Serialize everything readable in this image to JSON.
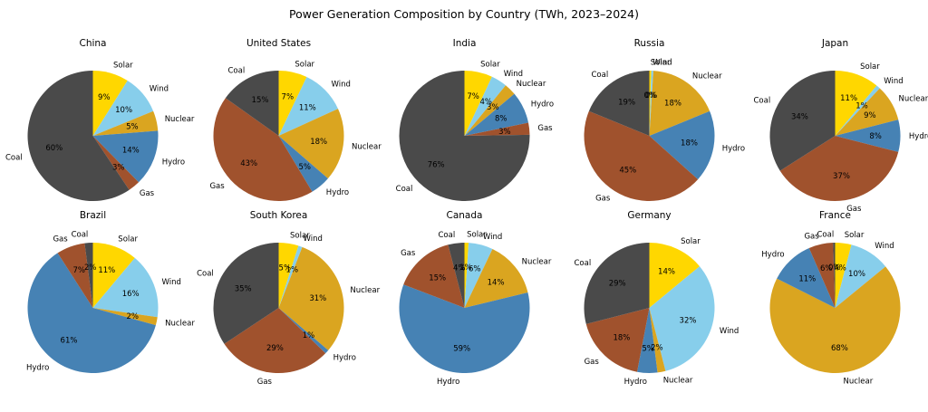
{
  "title": "Power Generation Composition by Country (TWh, 2023–2024)",
  "chart_data": {
    "type": "pie",
    "title": "Power Generation Composition by Country (TWh, 2023–2024)",
    "layout": {
      "rows": 2,
      "cols": 5,
      "legend": "none",
      "start_angle_deg": 90,
      "direction": "clockwise",
      "label_distance": 1.13,
      "pct_distance": 0.62
    },
    "categories": [
      "Solar",
      "Wind",
      "Nuclear",
      "Hydro",
      "Gas",
      "Coal"
    ],
    "colors": {
      "Solar": "#FFD700",
      "Wind": "#87CEEB",
      "Nuclear": "#DAA520",
      "Hydro": "#4682B4",
      "Gas": "#A0522D",
      "Coal": "#4A4A4A"
    },
    "pies": [
      {
        "country": "China",
        "segments": [
          {
            "label": "Solar",
            "pct": 9
          },
          {
            "label": "Wind",
            "pct": 10
          },
          {
            "label": "Nuclear",
            "pct": 5
          },
          {
            "label": "Hydro",
            "pct": 14
          },
          {
            "label": "Gas",
            "pct": 3
          },
          {
            "label": "Coal",
            "pct": 60
          }
        ]
      },
      {
        "country": "United States",
        "segments": [
          {
            "label": "Solar",
            "pct": 7
          },
          {
            "label": "Wind",
            "pct": 11
          },
          {
            "label": "Nuclear",
            "pct": 18
          },
          {
            "label": "Hydro",
            "pct": 5
          },
          {
            "label": "Gas",
            "pct": 43
          },
          {
            "label": "Coal",
            "pct": 15
          }
        ]
      },
      {
        "country": "India",
        "segments": [
          {
            "label": "Solar",
            "pct": 7
          },
          {
            "label": "Wind",
            "pct": 4
          },
          {
            "label": "Nuclear",
            "pct": 3
          },
          {
            "label": "Hydro",
            "pct": 8
          },
          {
            "label": "Gas",
            "pct": 3
          },
          {
            "label": "Coal",
            "pct": 76
          }
        ]
      },
      {
        "country": "Russia",
        "segments": [
          {
            "label": "Solar",
            "pct": 0,
            "draw": 0.5
          },
          {
            "label": "Wind",
            "pct": 0,
            "draw": 0.5
          },
          {
            "label": "Nuclear",
            "pct": 18
          },
          {
            "label": "Hydro",
            "pct": 18
          },
          {
            "label": "Gas",
            "pct": 45
          },
          {
            "label": "Coal",
            "pct": 19
          }
        ]
      },
      {
        "country": "Japan",
        "segments": [
          {
            "label": "Solar",
            "pct": 11
          },
          {
            "label": "Wind",
            "pct": 1
          },
          {
            "label": "Nuclear",
            "pct": 9
          },
          {
            "label": "Hydro",
            "pct": 8
          },
          {
            "label": "Gas",
            "pct": 37
          },
          {
            "label": "Coal",
            "pct": 34
          }
        ]
      },
      {
        "country": "Brazil",
        "segments": [
          {
            "label": "Solar",
            "pct": 11
          },
          {
            "label": "Wind",
            "pct": 16
          },
          {
            "label": "Nuclear",
            "pct": 2
          },
          {
            "label": "Hydro",
            "pct": 61
          },
          {
            "label": "Gas",
            "pct": 7
          },
          {
            "label": "Coal",
            "pct": 2
          }
        ]
      },
      {
        "country": "South Korea",
        "segments": [
          {
            "label": "Solar",
            "pct": 5
          },
          {
            "label": "Wind",
            "pct": 1
          },
          {
            "label": "Nuclear",
            "pct": 31
          },
          {
            "label": "Hydro",
            "pct": 1
          },
          {
            "label": "Gas",
            "pct": 29
          },
          {
            "label": "Coal",
            "pct": 35
          }
        ]
      },
      {
        "country": "Canada",
        "segments": [
          {
            "label": "Solar",
            "pct": 1
          },
          {
            "label": "Wind",
            "pct": 6
          },
          {
            "label": "Nuclear",
            "pct": 14
          },
          {
            "label": "Hydro",
            "pct": 59
          },
          {
            "label": "Gas",
            "pct": 15
          },
          {
            "label": "Coal",
            "pct": 4
          }
        ]
      },
      {
        "country": "Germany",
        "segments": [
          {
            "label": "Solar",
            "pct": 14
          },
          {
            "label": "Wind",
            "pct": 32
          },
          {
            "label": "Nuclear",
            "pct": 2
          },
          {
            "label": "Hydro",
            "pct": 5
          },
          {
            "label": "Gas",
            "pct": 18
          },
          {
            "label": "Coal",
            "pct": 29
          }
        ]
      },
      {
        "country": "France",
        "segments": [
          {
            "label": "Solar",
            "pct": 4
          },
          {
            "label": "Wind",
            "pct": 10
          },
          {
            "label": "Nuclear",
            "pct": 68
          },
          {
            "label": "Hydro",
            "pct": 11
          },
          {
            "label": "Gas",
            "pct": 6
          },
          {
            "label": "Coal",
            "pct": 0,
            "draw": 0.5
          }
        ]
      }
    ]
  }
}
